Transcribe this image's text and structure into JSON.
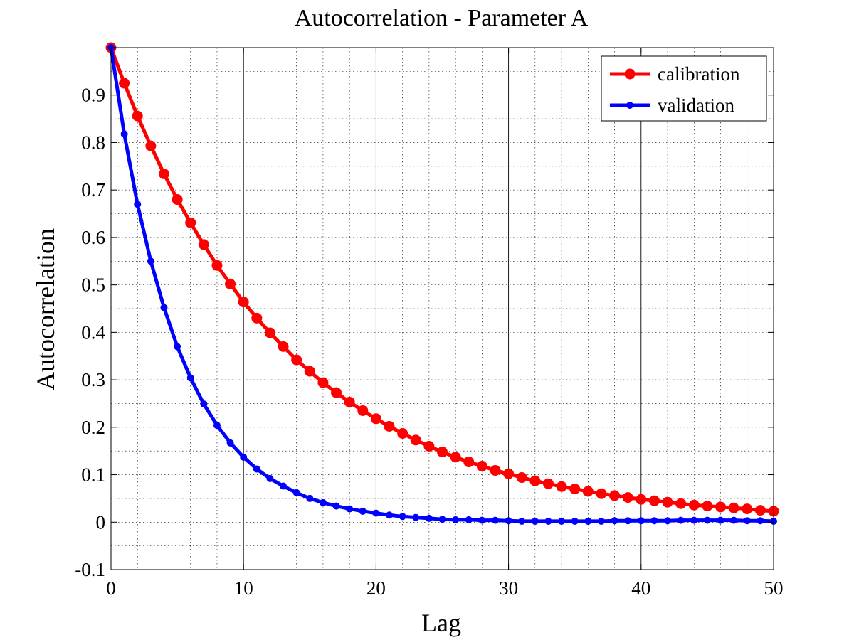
{
  "chart_data": {
    "type": "line",
    "title": "Autocorrelation - Parameter A",
    "xlabel": "Lag",
    "ylabel": "Autocorrelation",
    "xlim": [
      0,
      50
    ],
    "ylim": [
      -0.1,
      1.0
    ],
    "xticks": [
      0,
      10,
      20,
      30,
      40,
      50
    ],
    "yticks": [
      -0.1,
      0,
      0.1,
      0.2,
      0.3,
      0.4,
      0.5,
      0.6,
      0.7,
      0.8,
      0.9
    ],
    "ytick_labels": [
      "-0.1",
      "0",
      "0.1",
      "0.2",
      "0.3",
      "0.4",
      "0.5",
      "0.6",
      "0.7",
      "0.8",
      "0.9"
    ],
    "xtick_labels": [
      "0",
      "10",
      "20",
      "30",
      "40",
      "50"
    ],
    "grid": true,
    "minor_grid": true,
    "legend_position": "top-right",
    "x": [
      0,
      1,
      2,
      3,
      4,
      5,
      6,
      7,
      8,
      9,
      10,
      11,
      12,
      13,
      14,
      15,
      16,
      17,
      18,
      19,
      20,
      21,
      22,
      23,
      24,
      25,
      26,
      27,
      28,
      29,
      30,
      31,
      32,
      33,
      34,
      35,
      36,
      37,
      38,
      39,
      40,
      41,
      42,
      43,
      44,
      45,
      46,
      47,
      48,
      49,
      50
    ],
    "series": [
      {
        "name": "calibration",
        "color": "#ff0000",
        "marker_size": "large",
        "values": [
          1.0,
          0.925,
          0.856,
          0.793,
          0.734,
          0.68,
          0.631,
          0.585,
          0.541,
          0.502,
          0.464,
          0.43,
          0.399,
          0.37,
          0.342,
          0.318,
          0.294,
          0.273,
          0.253,
          0.235,
          0.218,
          0.202,
          0.187,
          0.173,
          0.16,
          0.148,
          0.137,
          0.127,
          0.118,
          0.109,
          0.102,
          0.094,
          0.087,
          0.081,
          0.075,
          0.07,
          0.065,
          0.06,
          0.056,
          0.052,
          0.048,
          0.045,
          0.042,
          0.039,
          0.036,
          0.034,
          0.032,
          0.03,
          0.028,
          0.025,
          0.023
        ]
      },
      {
        "name": "validation",
        "color": "#0000ff",
        "marker_size": "small",
        "values": [
          1.0,
          0.818,
          0.67,
          0.55,
          0.452,
          0.37,
          0.304,
          0.249,
          0.204,
          0.167,
          0.137,
          0.112,
          0.092,
          0.076,
          0.062,
          0.05,
          0.041,
          0.034,
          0.028,
          0.023,
          0.019,
          0.015,
          0.012,
          0.01,
          0.008,
          0.006,
          0.005,
          0.005,
          0.004,
          0.004,
          0.003,
          0.002,
          0.002,
          0.002,
          0.002,
          0.002,
          0.002,
          0.002,
          0.003,
          0.003,
          0.003,
          0.003,
          0.003,
          0.004,
          0.004,
          0.004,
          0.004,
          0.004,
          0.003,
          0.003,
          0.002
        ]
      }
    ]
  }
}
